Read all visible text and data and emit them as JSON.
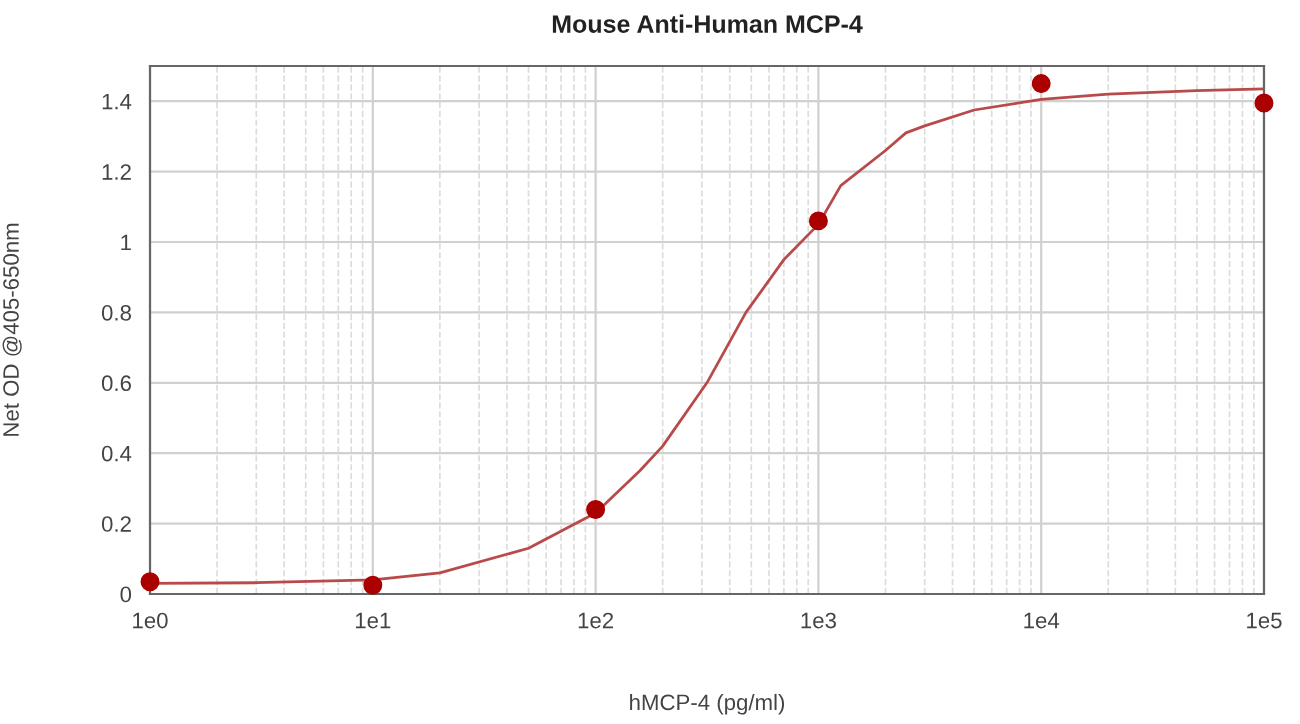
{
  "chart_data": {
    "type": "scatter",
    "title": "Mouse Anti-Human MCP-4",
    "xlabel": "hMCP-4 (pg/ml)",
    "ylabel": "Net OD @405-650nm",
    "log": "x",
    "grid": true,
    "marker": "circle",
    "xlim": [
      1,
      100000
    ],
    "xticks": [
      {
        "value": 1,
        "label": "1e0"
      },
      {
        "value": 10,
        "label": "1e1"
      },
      {
        "value": 100,
        "label": "1e2"
      },
      {
        "value": 1000,
        "label": "1e3"
      },
      {
        "value": 10000,
        "label": "1e4"
      },
      {
        "value": 100000,
        "label": "1e5"
      }
    ],
    "ylim": [
      0,
      1.5
    ],
    "yticks": [
      0,
      0.2,
      0.4,
      0.6,
      0.8,
      1,
      1.2,
      1.4
    ],
    "series": [
      {
        "color": "#aa0000",
        "x": [
          1,
          10,
          100,
          1000,
          10000,
          100000
        ],
        "values": [
          0.035,
          0.025,
          0.24,
          1.06,
          1.45,
          1.395
        ]
      },
      {
        "type": "line",
        "color": "#b84a4a",
        "marker": "none",
        "x": [
          1,
          3,
          10,
          20,
          50,
          100,
          158,
          200,
          316,
          473,
          700,
          1000,
          1260,
          2000,
          2470,
          3000,
          5000,
          10000,
          20000,
          50000,
          100000
        ],
        "values": [
          0.03,
          0.032,
          0.04,
          0.06,
          0.13,
          0.23,
          0.35,
          0.42,
          0.6,
          0.8,
          0.95,
          1.05,
          1.16,
          1.26,
          1.31,
          1.33,
          1.375,
          1.405,
          1.42,
          1.43,
          1.435
        ]
      }
    ]
  }
}
